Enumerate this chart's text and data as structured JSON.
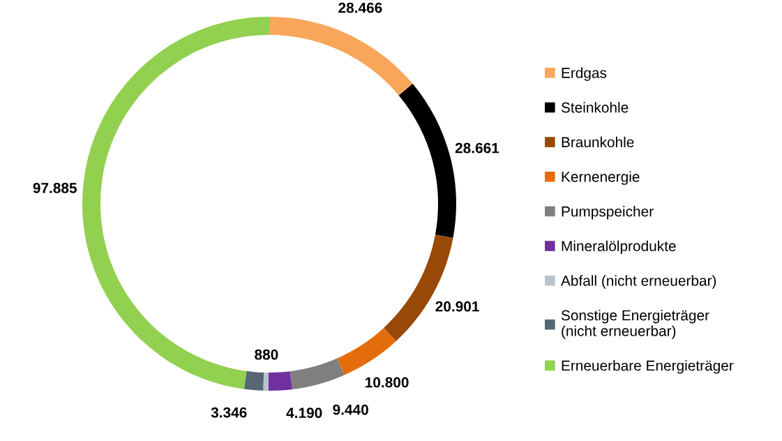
{
  "chart_data": {
    "type": "donut",
    "categories": [
      "Erdgas",
      "Steinkohle",
      "Braunkohle",
      "Kernenergie",
      "Pumpspeicher",
      "Mineralölprodukte",
      "Abfall (nicht erneuerbar)",
      "Sonstige Energieträger\n(nicht erneuerbar)",
      "Erneuerbare Energieträger"
    ],
    "values": [
      28466,
      28661,
      20901,
      10800,
      9440,
      4190,
      880,
      3346,
      97885
    ],
    "value_labels": [
      "28.466",
      "28.661",
      "20.901",
      "10.800",
      "9.440",
      "4.190",
      "880",
      "3.346",
      "97.885"
    ],
    "colors": [
      "#f9a65a",
      "#000000",
      "#984807",
      "#e46c0a",
      "#7f7f7f",
      "#7030a0",
      "#b9c3cc",
      "#556873",
      "#92d050"
    ],
    "legend": "right"
  }
}
